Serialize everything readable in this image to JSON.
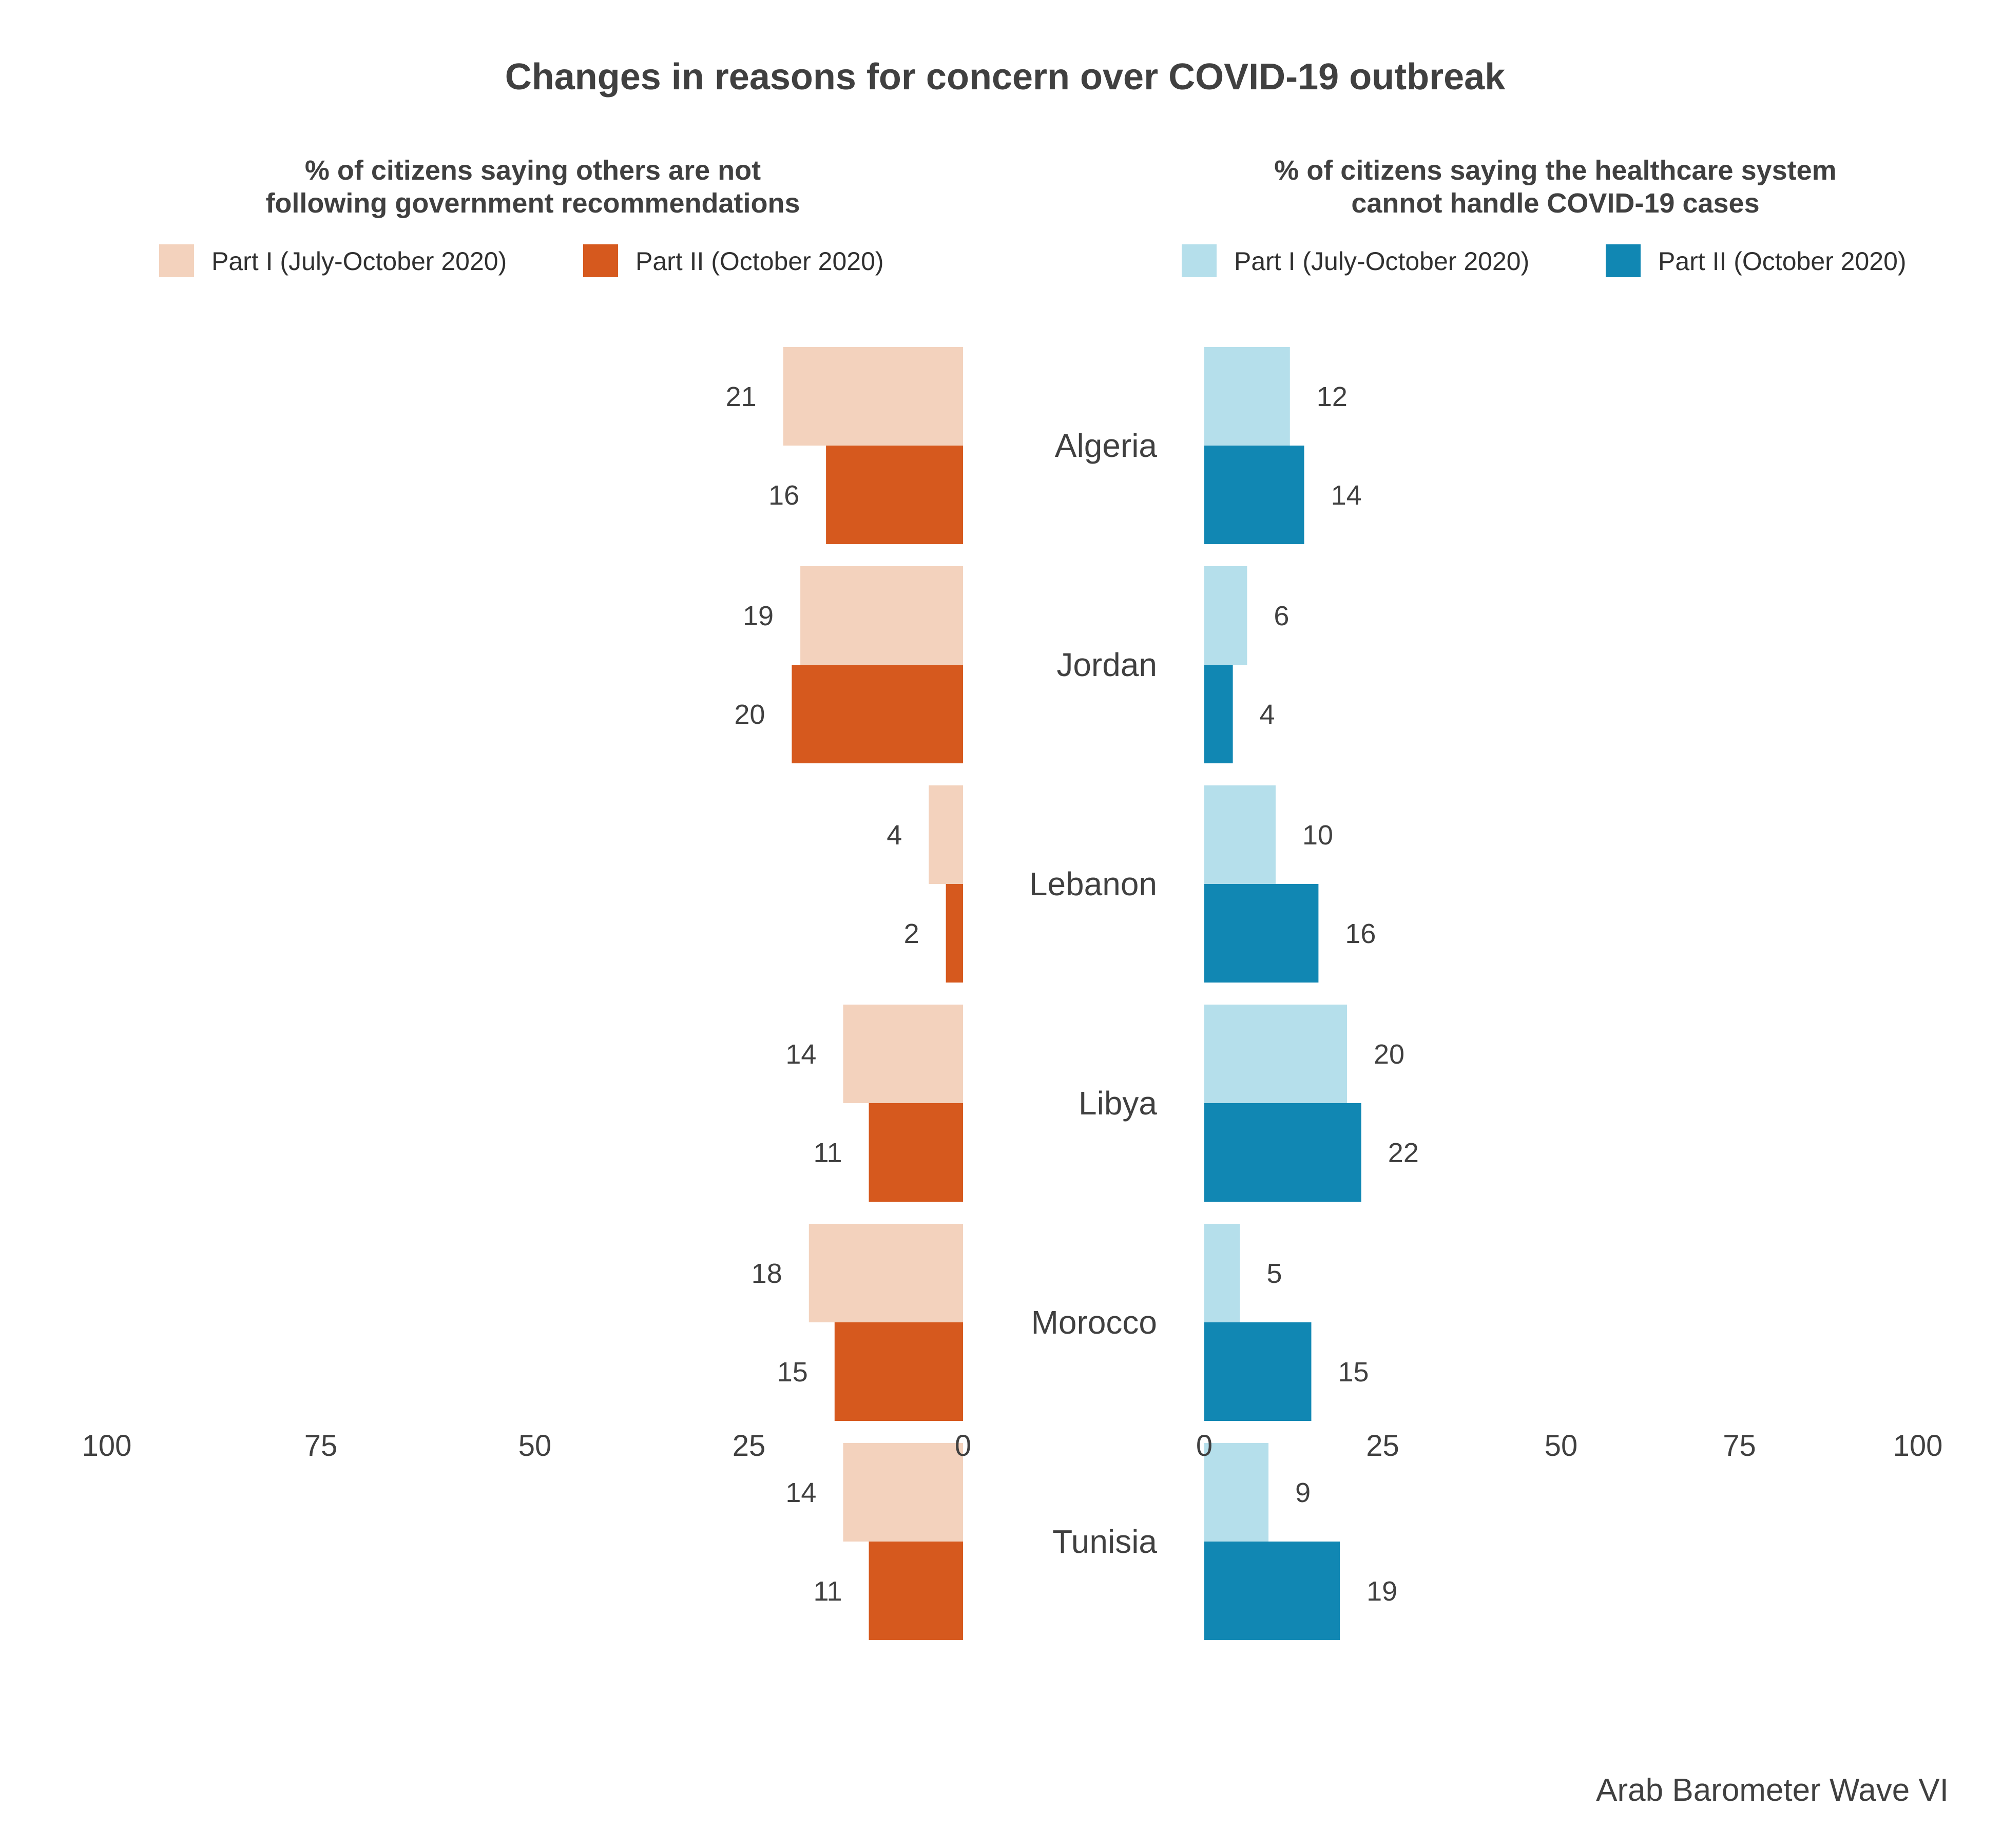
{
  "title": "Changes in reasons for concern over COVID-19 outbreak",
  "caption": "Arab Barometer Wave VI",
  "colors": {
    "left_part1": "#f3d2bd",
    "left_part2": "#d6591e",
    "right_part1": "#b5dfeb",
    "right_part2": "#1187b3",
    "text": "#404040"
  },
  "chart_data": [
    {
      "type": "bar",
      "orientation": "horizontal",
      "direction": "reversed",
      "subtitle_lines": [
        "% of citizens saying others are not",
        "following government recommendations"
      ],
      "categories": [
        "Algeria",
        "Jordan",
        "Lebanon",
        "Libya",
        "Morocco",
        "Tunisia"
      ],
      "series": [
        {
          "name": "Part I (July-October 2020)",
          "values": [
            21,
            19,
            4,
            14,
            18,
            14
          ]
        },
        {
          "name": "Part II (October 2020)",
          "values": [
            16,
            20,
            2,
            11,
            15,
            11
          ]
        }
      ],
      "xlim": [
        0,
        100
      ],
      "ticks": [
        "100",
        "75",
        "50",
        "25",
        "0"
      ],
      "tick_values": [
        100,
        75,
        50,
        25,
        0
      ],
      "legend_position": "top",
      "grid": false
    },
    {
      "type": "bar",
      "orientation": "horizontal",
      "direction": "normal",
      "subtitle_lines": [
        "% of citizens saying the healthcare system",
        "cannot handle COVID-19 cases"
      ],
      "categories": [
        "Algeria",
        "Jordan",
        "Lebanon",
        "Libya",
        "Morocco",
        "Tunisia"
      ],
      "series": [
        {
          "name": "Part I (July-October 2020)",
          "values": [
            12,
            6,
            10,
            20,
            5,
            9
          ]
        },
        {
          "name": "Part II (October 2020)",
          "values": [
            14,
            4,
            16,
            22,
            15,
            19
          ]
        }
      ],
      "xlim": [
        0,
        100
      ],
      "ticks": [
        "0",
        "25",
        "50",
        "75",
        "100"
      ],
      "tick_values": [
        0,
        25,
        50,
        75,
        100
      ],
      "legend_position": "top",
      "grid": false
    }
  ]
}
